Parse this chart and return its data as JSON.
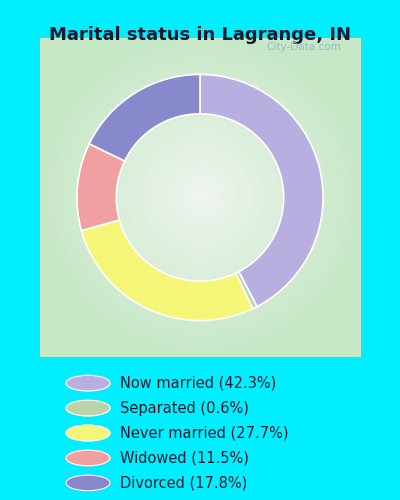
{
  "title": "Marital status in Lagrange, IN",
  "title_fontsize": 13,
  "title_color": "#1a1a2e",
  "background_cyan": "#00eeff",
  "background_chart_grad_left": "#c8e8c8",
  "background_chart_center": "#eaf5ea",
  "legend_background": "#00eeff",
  "slices": [
    {
      "label": "Now married (42.3%)",
      "value": 42.3,
      "color": "#b8aee0"
    },
    {
      "label": "Separated (0.6%)",
      "value": 0.6,
      "color": "#b8d4a8"
    },
    {
      "label": "Never married (27.7%)",
      "value": 27.7,
      "color": "#f5f577"
    },
    {
      "label": "Widowed (11.5%)",
      "value": 11.5,
      "color": "#f0a0a0"
    },
    {
      "label": "Divorced (17.8%)",
      "value": 17.8,
      "color": "#8888cc"
    }
  ],
  "donut_width": 0.32,
  "legend_fontsize": 10.5,
  "watermark": "City-Data.com",
  "watermark_color": "#99bbcc",
  "border_color": "#00eeff",
  "border_width": 8
}
